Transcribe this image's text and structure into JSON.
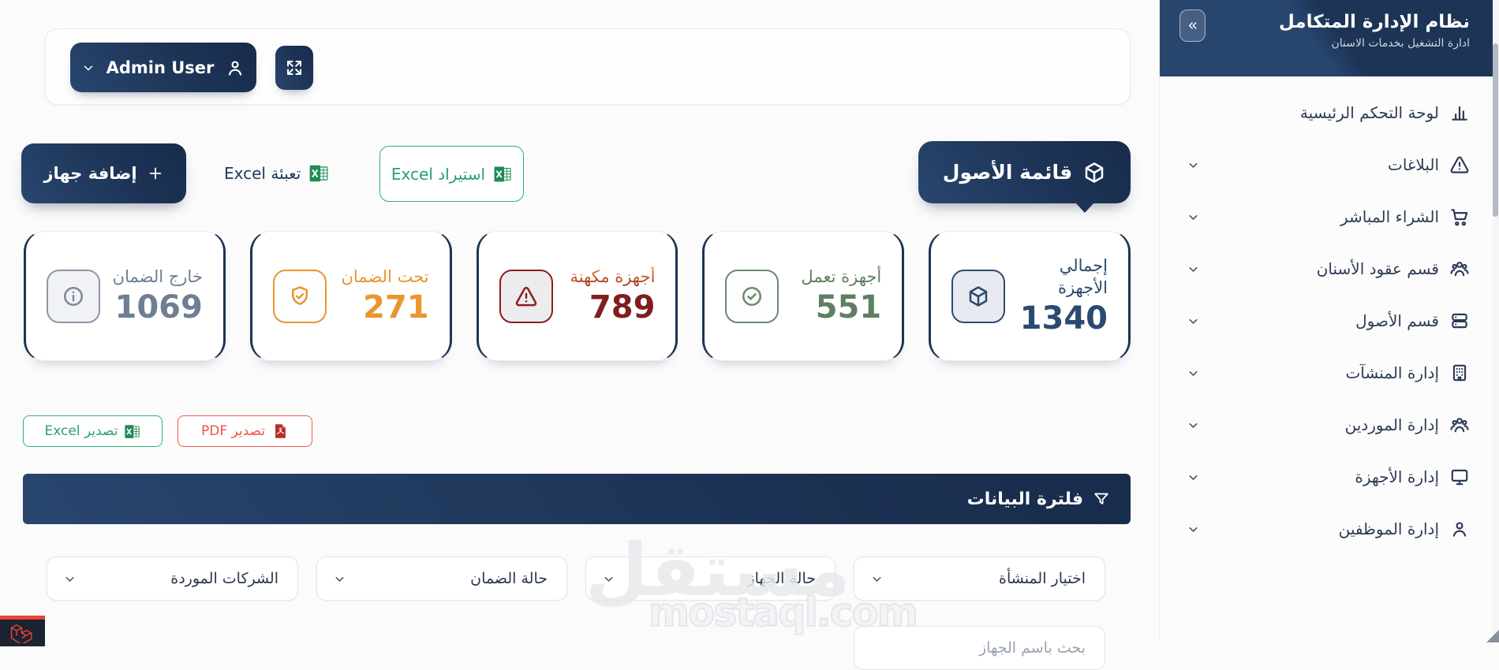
{
  "app": {
    "title": "نظام الإدارة المتكامل",
    "subtitle": "ادارة التشغيل بخدمات الاسنان",
    "collapse_icon": "chevrons-left"
  },
  "topbar": {
    "user_label": "Admin User",
    "user_icon": "user",
    "expand_icon": "expand"
  },
  "sidebar": {
    "items": [
      {
        "label": "لوحة التحكم الرئيسية",
        "icon": "bar-chart",
        "expandable": false
      },
      {
        "label": "البلاغات",
        "icon": "alert-triangle",
        "expandable": true
      },
      {
        "label": "الشراء المباشر",
        "icon": "shopping-cart",
        "expandable": true
      },
      {
        "label": "قسم عقود الأسنان",
        "icon": "users-group",
        "expandable": true
      },
      {
        "label": "قسم الأصول",
        "icon": "drawers",
        "expandable": true
      },
      {
        "label": "إدارة المنشآت",
        "icon": "building",
        "expandable": true
      },
      {
        "label": "إدارة الموردين",
        "icon": "users-group",
        "expandable": true
      },
      {
        "label": "إدارة الأجهزة",
        "icon": "monitor",
        "expandable": true
      },
      {
        "label": "إدارة الموظفين",
        "icon": "user",
        "expandable": true
      }
    ]
  },
  "actions": {
    "add_device": "إضافة جهاز",
    "fill_excel": "تعبئة Excel",
    "import_excel": "استيراد Excel"
  },
  "assets_badge": {
    "label": "قائمة الأصول",
    "icon": "cube"
  },
  "stats": {
    "cards": [
      {
        "label": "إجمالي الأجهزة",
        "value": "1340",
        "icon": "cube",
        "accent": "navy"
      },
      {
        "label": "أجهزة تعمل",
        "value": "551",
        "icon": "check-circle",
        "accent": "green"
      },
      {
        "label": "أجهزة مكهنة",
        "value": "789",
        "icon": "alert-triangle",
        "accent": "red"
      },
      {
        "label": "تحت الضمان",
        "value": "271",
        "icon": "shield-check",
        "accent": "orange"
      },
      {
        "label": "خارج الضمان",
        "value": "1069",
        "icon": "info-circle",
        "accent": "gray"
      }
    ]
  },
  "export": {
    "excel_label": "تصدير Excel",
    "pdf_label": "تصدير PDF"
  },
  "filter": {
    "title": "فلترة البيانات",
    "icon": "funnel",
    "dropdowns": [
      "اختيار المنشأة",
      "حالة الجهاز",
      "حالة الضمان",
      "الشركات الموردة"
    ],
    "search_placeholder": "بحث باسم الجهاز"
  },
  "watermark": {
    "arabic": "مستقل",
    "latin": "mostaql.com"
  },
  "colors": {
    "navy": "#1e3456",
    "green": "#27a36f",
    "pdf_red": "#ef5348",
    "orange": "#e8962e",
    "dark_red": "#7e1f1f",
    "gray": "#6e7e93"
  }
}
